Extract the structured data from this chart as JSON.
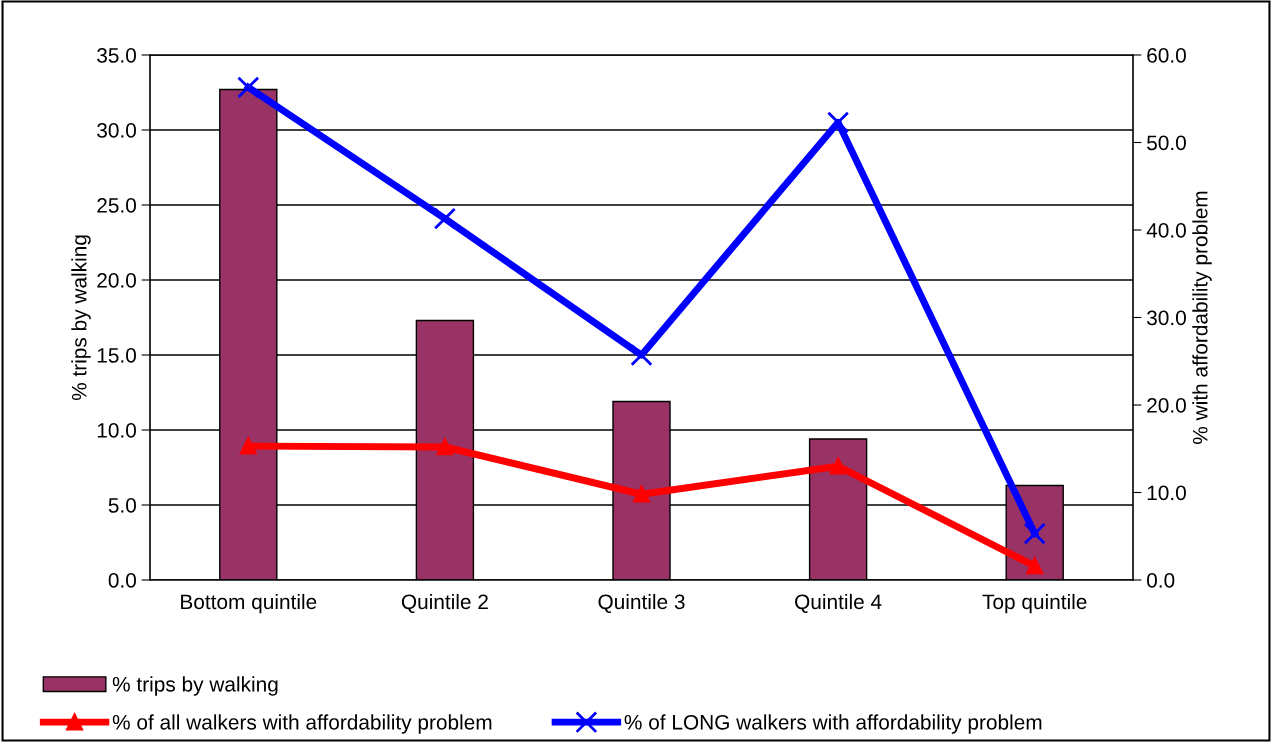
{
  "chart_data": {
    "type": "bar",
    "categories": [
      "Bottom quintile",
      "Quintile 2",
      "Quintile 3",
      "Quintile 4",
      "Top quintile"
    ],
    "ylabel": "% trips by walking",
    "y2label": "% with affordability problem",
    "ylim": [
      0,
      35
    ],
    "yticks": [
      {
        "value": 0,
        "label": "0.0"
      },
      {
        "value": 5,
        "label": "5.0"
      },
      {
        "value": 10,
        "label": "10.0"
      },
      {
        "value": 15,
        "label": "15.0"
      },
      {
        "value": 20,
        "label": "20.0"
      },
      {
        "value": 25,
        "label": "25.0"
      },
      {
        "value": 30,
        "label": "30.0"
      },
      {
        "value": 35,
        "label": "35.0"
      }
    ],
    "y2lim": [
      0,
      60
    ],
    "y2ticks": [
      {
        "value": 0,
        "label": "0.0"
      },
      {
        "value": 10,
        "label": "10.0"
      },
      {
        "value": 20,
        "label": "20.0"
      },
      {
        "value": 30,
        "label": "30.0"
      },
      {
        "value": 40,
        "label": "40.0"
      },
      {
        "value": 50,
        "label": "50.0"
      },
      {
        "value": 60,
        "label": "60.0"
      }
    ],
    "grid": "y",
    "legend": "bottom",
    "series": [
      {
        "name": "% trips by walking",
        "color": "#993366",
        "values": [
          32.7,
          17.3,
          11.9,
          9.4,
          6.3
        ]
      },
      {
        "name": "% of all walkers with affordability problem",
        "type": "line",
        "axis": "y2",
        "color": "#ff0000",
        "marker": "triangle",
        "values": [
          15.3,
          15.2,
          9.8,
          13.0,
          1.6
        ]
      },
      {
        "name": "% of LONG walkers with affordability problem",
        "type": "line",
        "axis": "y2",
        "color": "#0000ff",
        "marker": "cross",
        "values": [
          56.3,
          41.3,
          25.7,
          52.3,
          5.3
        ]
      }
    ]
  }
}
